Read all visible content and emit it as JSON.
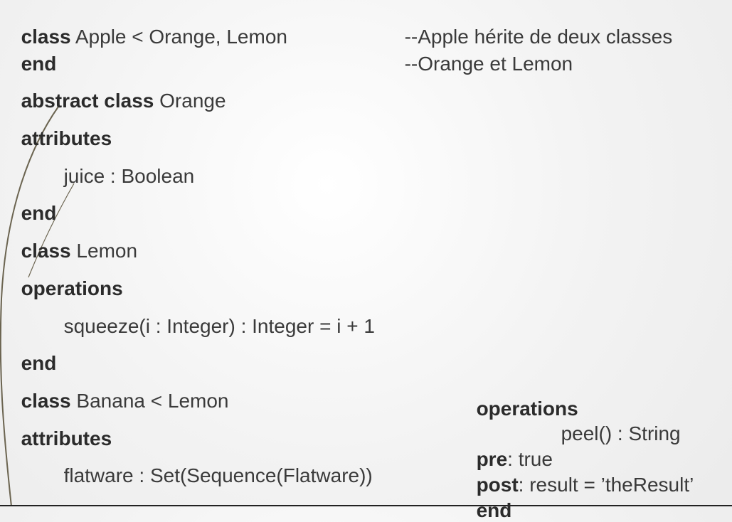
{
  "left": {
    "l1": {
      "kw": "class",
      "rest": " Apple < Orange, Lemon"
    },
    "l2": {
      "kw": "end"
    },
    "l3": {
      "kw": "abstract class",
      "rest": " Orange"
    },
    "l4": {
      "kw": "attributes"
    },
    "l5": {
      "text": "juice : Boolean"
    },
    "l6": {
      "kw": "end"
    },
    "l7": {
      "kw": "class",
      "rest": " Lemon"
    },
    "l8": {
      "kw": "operations"
    },
    "l9": {
      "text": "squeeze(i : Integer) : Integer = i + 1"
    },
    "l10": {
      "kw": "end"
    },
    "l11": {
      "kw": "class",
      "rest": " Banana < Lemon"
    },
    "l12": {
      "kw": "attributes"
    },
    "l13": {
      "text": "flatware : Set(Sequence(Flatware))"
    }
  },
  "comments": {
    "c1": "--Apple hérite de deux classes",
    "c2": "--Orange et Lemon"
  },
  "right": {
    "r1": {
      "kw": "operations"
    },
    "r2": {
      "text": "peel() : String"
    },
    "r3": {
      "kw": "pre",
      "rest": ": true"
    },
    "r4": {
      "kw": "post",
      "rest": ": result = ’theResult’"
    },
    "r5": {
      "kw": "end"
    }
  },
  "colors": {
    "text": "#3a3a3a",
    "keyword": "#2b2b2b",
    "decor_line": "#6b6450",
    "background": "#f6f6f6"
  }
}
